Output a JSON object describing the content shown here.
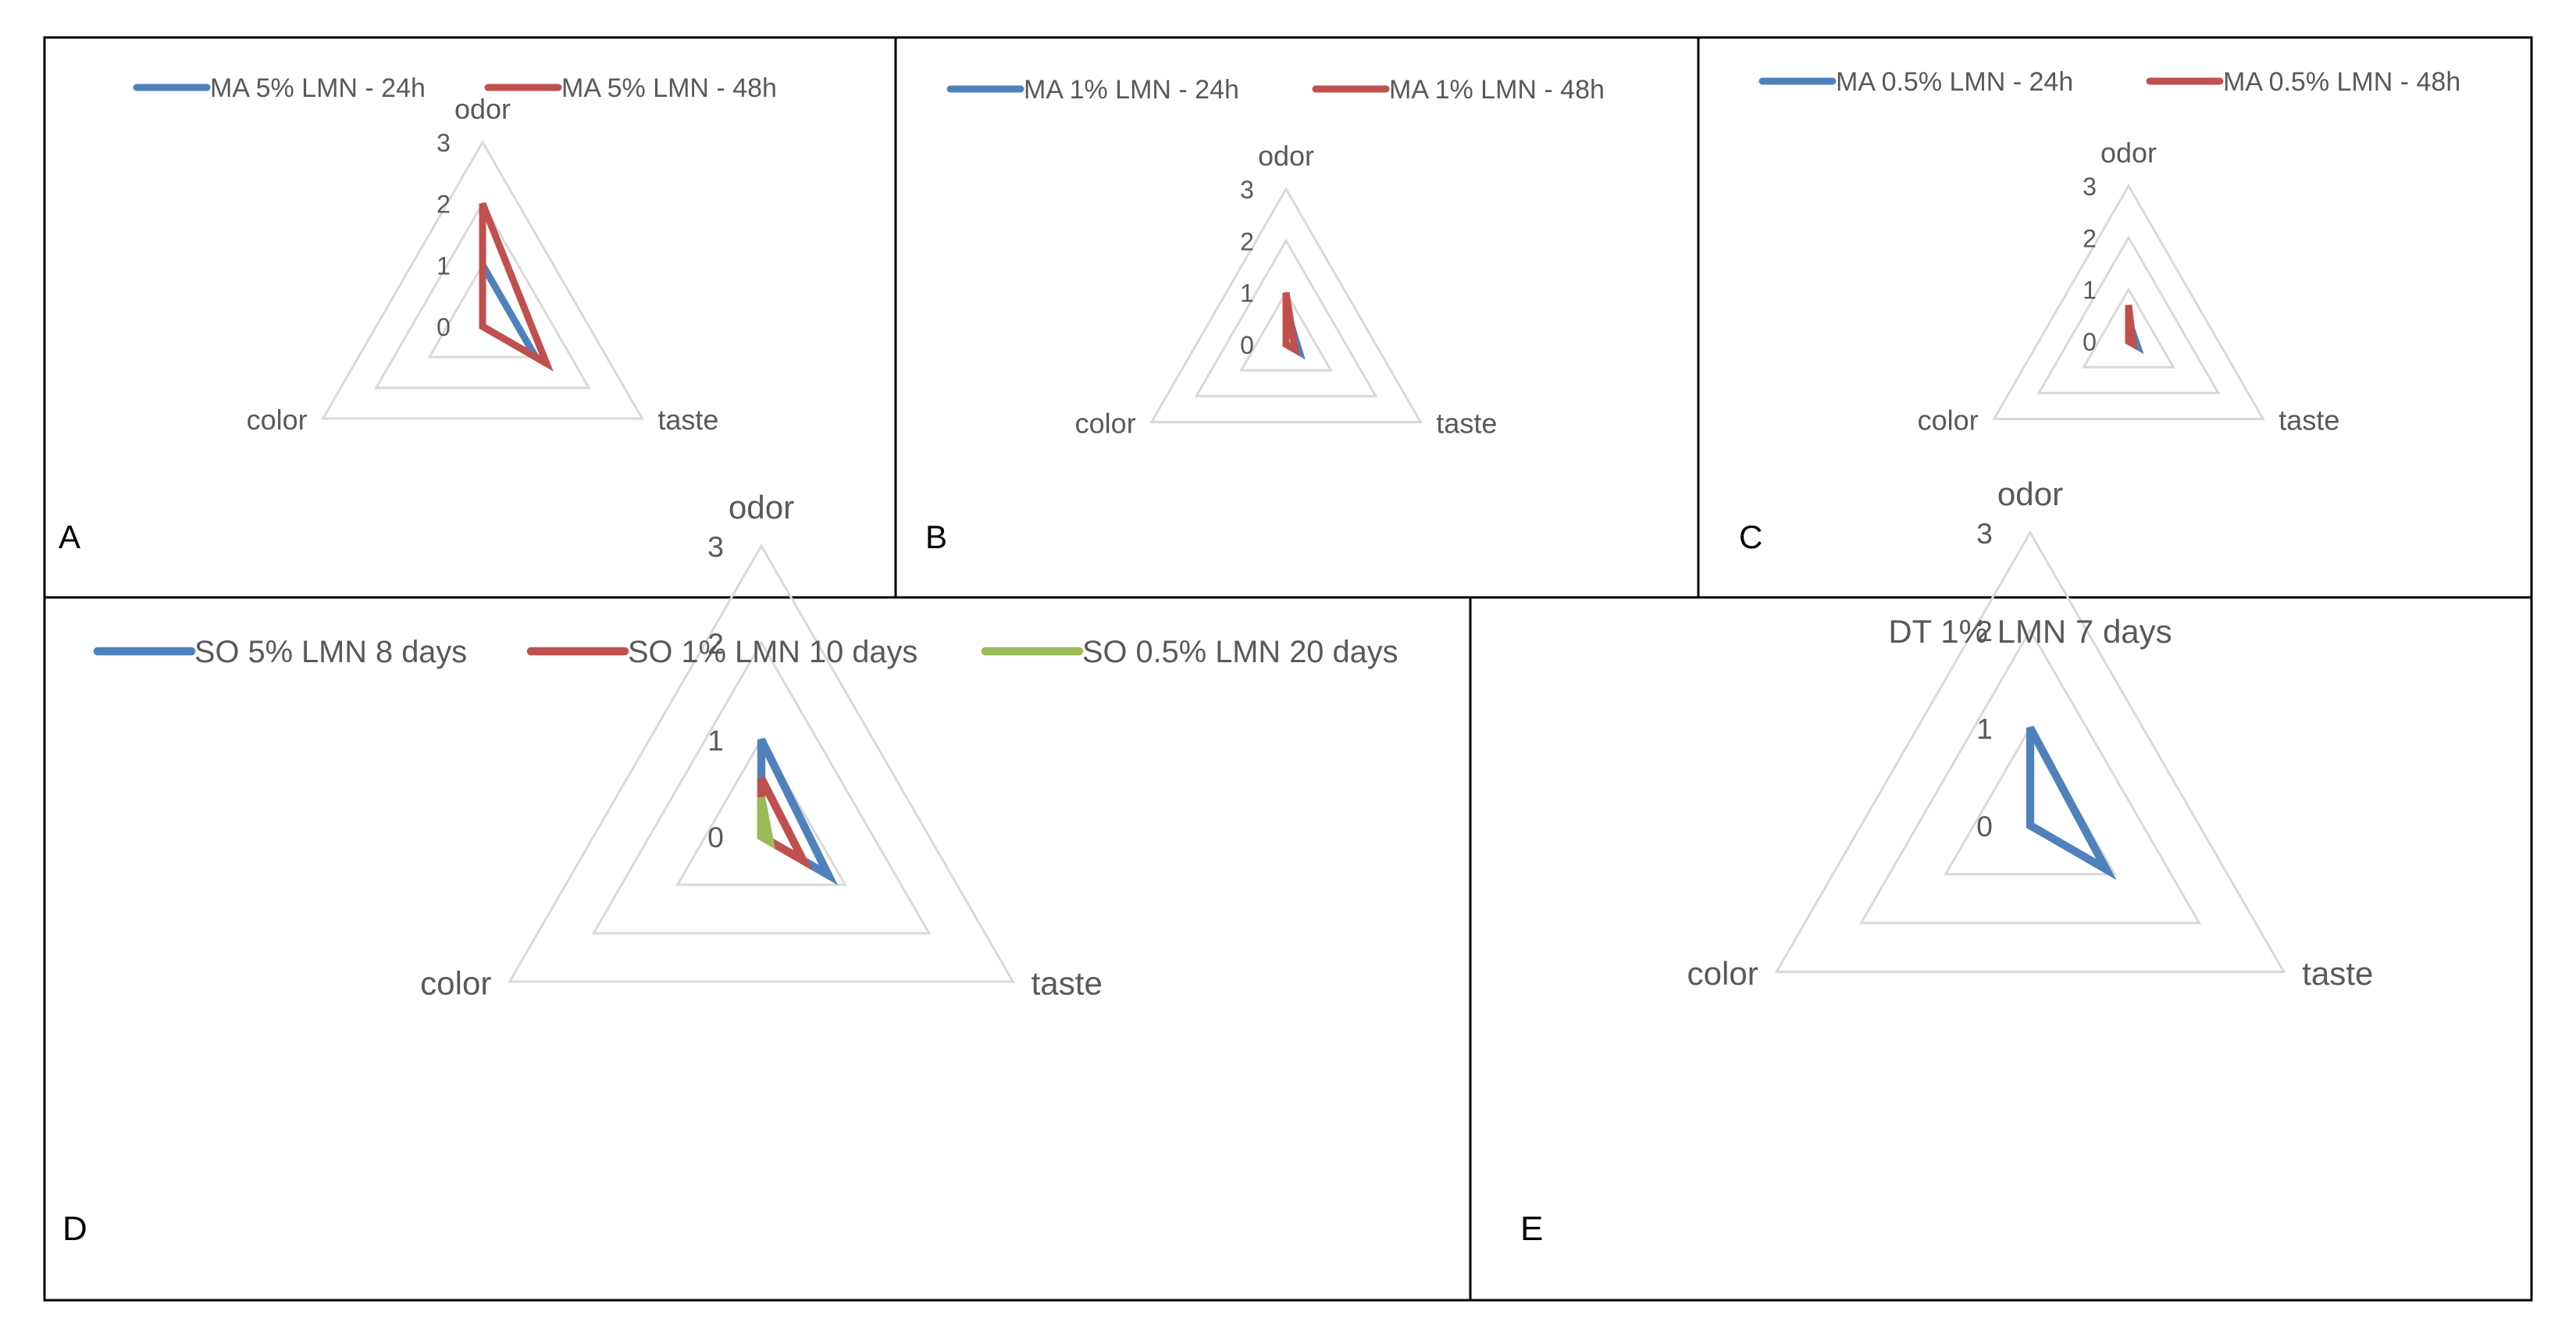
{
  "colors": {
    "blue": "#4F81BD",
    "red": "#C0504D",
    "green": "#9BBB59",
    "grid": "#D9D9D9",
    "border": "#000000"
  },
  "chart_data": [
    {
      "id": "A",
      "type": "radar",
      "panel_label": "A",
      "title": "",
      "axes": [
        "odor",
        "taste",
        "color"
      ],
      "tick_labels": [
        "0",
        "1",
        "2",
        "3"
      ],
      "rlim": [
        0,
        3
      ],
      "legend_position": "top",
      "series": [
        {
          "name": "MA 5% LMN - 24h",
          "color": "#4F81BD",
          "values": [
            1,
            1,
            0
          ]
        },
        {
          "name": "MA 5% LMN - 48h",
          "color": "#C0504D",
          "values": [
            2,
            1.2,
            0
          ]
        }
      ]
    },
    {
      "id": "B",
      "type": "radar",
      "panel_label": "B",
      "title": "",
      "axes": [
        "odor",
        "taste",
        "color"
      ],
      "tick_labels": [
        "0",
        "1",
        "2",
        "3"
      ],
      "rlim": [
        0,
        3
      ],
      "legend_position": "top",
      "series": [
        {
          "name": "MA 1% LMN - 24h",
          "color": "#4F81BD",
          "values": [
            0.7,
            0.3,
            0
          ]
        },
        {
          "name": "MA 1% LMN - 48h",
          "color": "#C0504D",
          "values": [
            1,
            0.2,
            0
          ]
        }
      ]
    },
    {
      "id": "C",
      "type": "radar",
      "panel_label": "C",
      "title": "",
      "axes": [
        "odor",
        "taste",
        "color"
      ],
      "tick_labels": [
        "0",
        "1",
        "2",
        "3"
      ],
      "rlim": [
        0,
        3
      ],
      "legend_position": "top",
      "series": [
        {
          "name": "MA 0.5% LMN - 24h",
          "color": "#4F81BD",
          "values": [
            0.4,
            0.2,
            0
          ]
        },
        {
          "name": "MA 0.5% LMN - 48h",
          "color": "#C0504D",
          "values": [
            0.7,
            0.1,
            0
          ]
        }
      ]
    },
    {
      "id": "D",
      "type": "radar",
      "panel_label": "D",
      "title": "",
      "axes": [
        "odor",
        "taste",
        "color"
      ],
      "tick_labels": [
        "0",
        "1",
        "2",
        "3"
      ],
      "rlim": [
        0,
        3
      ],
      "legend_position": "top",
      "series": [
        {
          "name": "SO 5% LMN 8 days",
          "color": "#4F81BD",
          "values": [
            1,
            0.8,
            0
          ]
        },
        {
          "name": "SO 1% LMN 10 days",
          "color": "#C0504D",
          "values": [
            0.6,
            0.5,
            0
          ]
        },
        {
          "name": "SO 0.5% LMN 20 days",
          "color": "#9BBB59",
          "values": [
            0.4,
            0.1,
            0
          ]
        }
      ]
    },
    {
      "id": "E",
      "type": "radar",
      "panel_label": "E",
      "title": "DT 1% LMN 7 days",
      "axes": [
        "odor",
        "taste",
        "color"
      ],
      "tick_labels": [
        "0",
        "1",
        "2",
        "3"
      ],
      "rlim": [
        0,
        3
      ],
      "legend_position": "none",
      "series": [
        {
          "name": "DT 1% LMN 7 days",
          "color": "#4F81BD",
          "values": [
            1,
            0.9,
            0
          ]
        }
      ]
    }
  ]
}
